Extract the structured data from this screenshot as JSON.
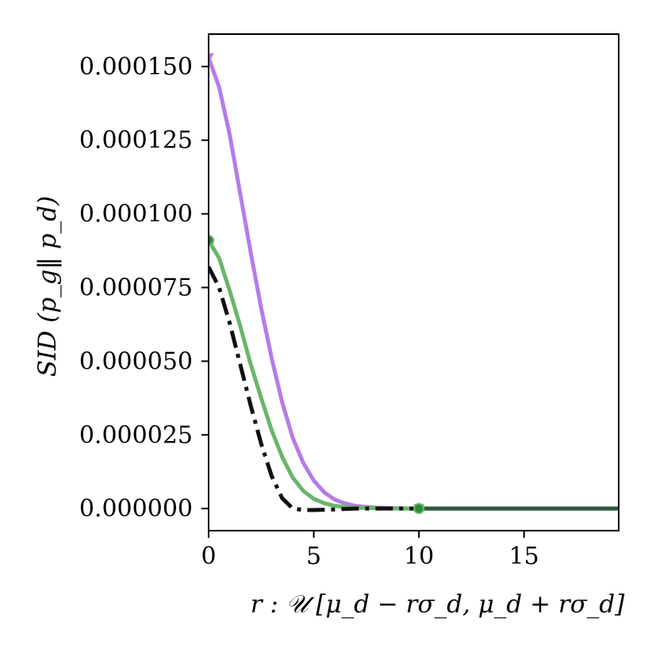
{
  "chart_data": {
    "type": "line",
    "title": "",
    "xlabel": "r : 𝒰 [μ_d − rσ_d, μ_d + rσ_d]",
    "ylabel": "SID (p_g‖ p_d)",
    "xlim": [
      0,
      19.5
    ],
    "ylim": [
      -7.5e-06,
      0.000161
    ],
    "x_ticks": [
      0,
      5,
      10,
      15
    ],
    "x_tick_labels": [
      "0",
      "5",
      "10",
      "15"
    ],
    "y_ticks": [
      0,
      2.5e-05,
      5e-05,
      7.5e-05,
      0.0001,
      0.000125,
      0.00015
    ],
    "y_tick_labels": [
      "0.000000",
      "0.000025",
      "0.000050",
      "0.000075",
      "0.000100",
      "0.000125",
      "0.000150"
    ],
    "grid": false,
    "series": [
      {
        "color": "#b77be8",
        "style": "solid",
        "marker": "triangle-down",
        "marker_x": [
          0,
          10
        ],
        "x": [
          0,
          0.5,
          1,
          1.5,
          2,
          2.5,
          3,
          3.5,
          4,
          4.5,
          5,
          5.5,
          6,
          6.5,
          7,
          7.5,
          8,
          9,
          10,
          12,
          15,
          19.5
        ],
        "y": [
          0.000153,
          0.000143,
          0.000127,
          0.000107,
          8.7e-05,
          6.8e-05,
          5.1e-05,
          3.6e-05,
          2.4e-05,
          1.55e-05,
          9.5e-06,
          5.5e-06,
          3e-06,
          1.7e-06,
          9e-07,
          5e-07,
          3e-07,
          1e-07,
          0.0,
          0.0,
          0.0,
          0.0
        ]
      },
      {
        "color": "#6ab56a",
        "style": "solid",
        "marker": "circle",
        "marker_x": [
          0,
          10
        ],
        "x": [
          0,
          0.5,
          1,
          1.5,
          2,
          2.5,
          3,
          3.5,
          4,
          4.5,
          5,
          5.5,
          6,
          6.5,
          7,
          8,
          9,
          10,
          12,
          15,
          19.5
        ],
        "y": [
          9.1e-05,
          8.5e-05,
          7.4e-05,
          6.2e-05,
          4.9e-05,
          3.75e-05,
          2.65e-05,
          1.75e-05,
          1.05e-05,
          6e-06,
          3.3e-06,
          1.8e-06,
          9e-07,
          5e-07,
          3e-07,
          1e-07,
          0.0,
          0.0,
          0.0,
          0.0,
          0.0
        ]
      },
      {
        "color": "#111111",
        "style": "dashdot",
        "marker": "",
        "marker_x": [],
        "x": [
          0,
          0.5,
          1,
          1.5,
          2,
          2.5,
          3,
          3.5,
          4,
          4.5,
          5,
          6,
          7,
          8,
          9,
          10
        ],
        "y": [
          8.2e-05,
          7.5e-05,
          6.3e-05,
          4.9e-05,
          3.5e-05,
          2.2e-05,
          1.1e-05,
          3.5e-06,
          0.0,
          -5e-07,
          -5e-07,
          -3e-07,
          0.0,
          0.0,
          0.0,
          0.0
        ]
      },
      {
        "color": "#2e5a3e",
        "style": "solid",
        "marker": "",
        "marker_x": [],
        "x": [
          10,
          19.5
        ],
        "y": [
          0.0,
          0.0
        ]
      }
    ]
  }
}
